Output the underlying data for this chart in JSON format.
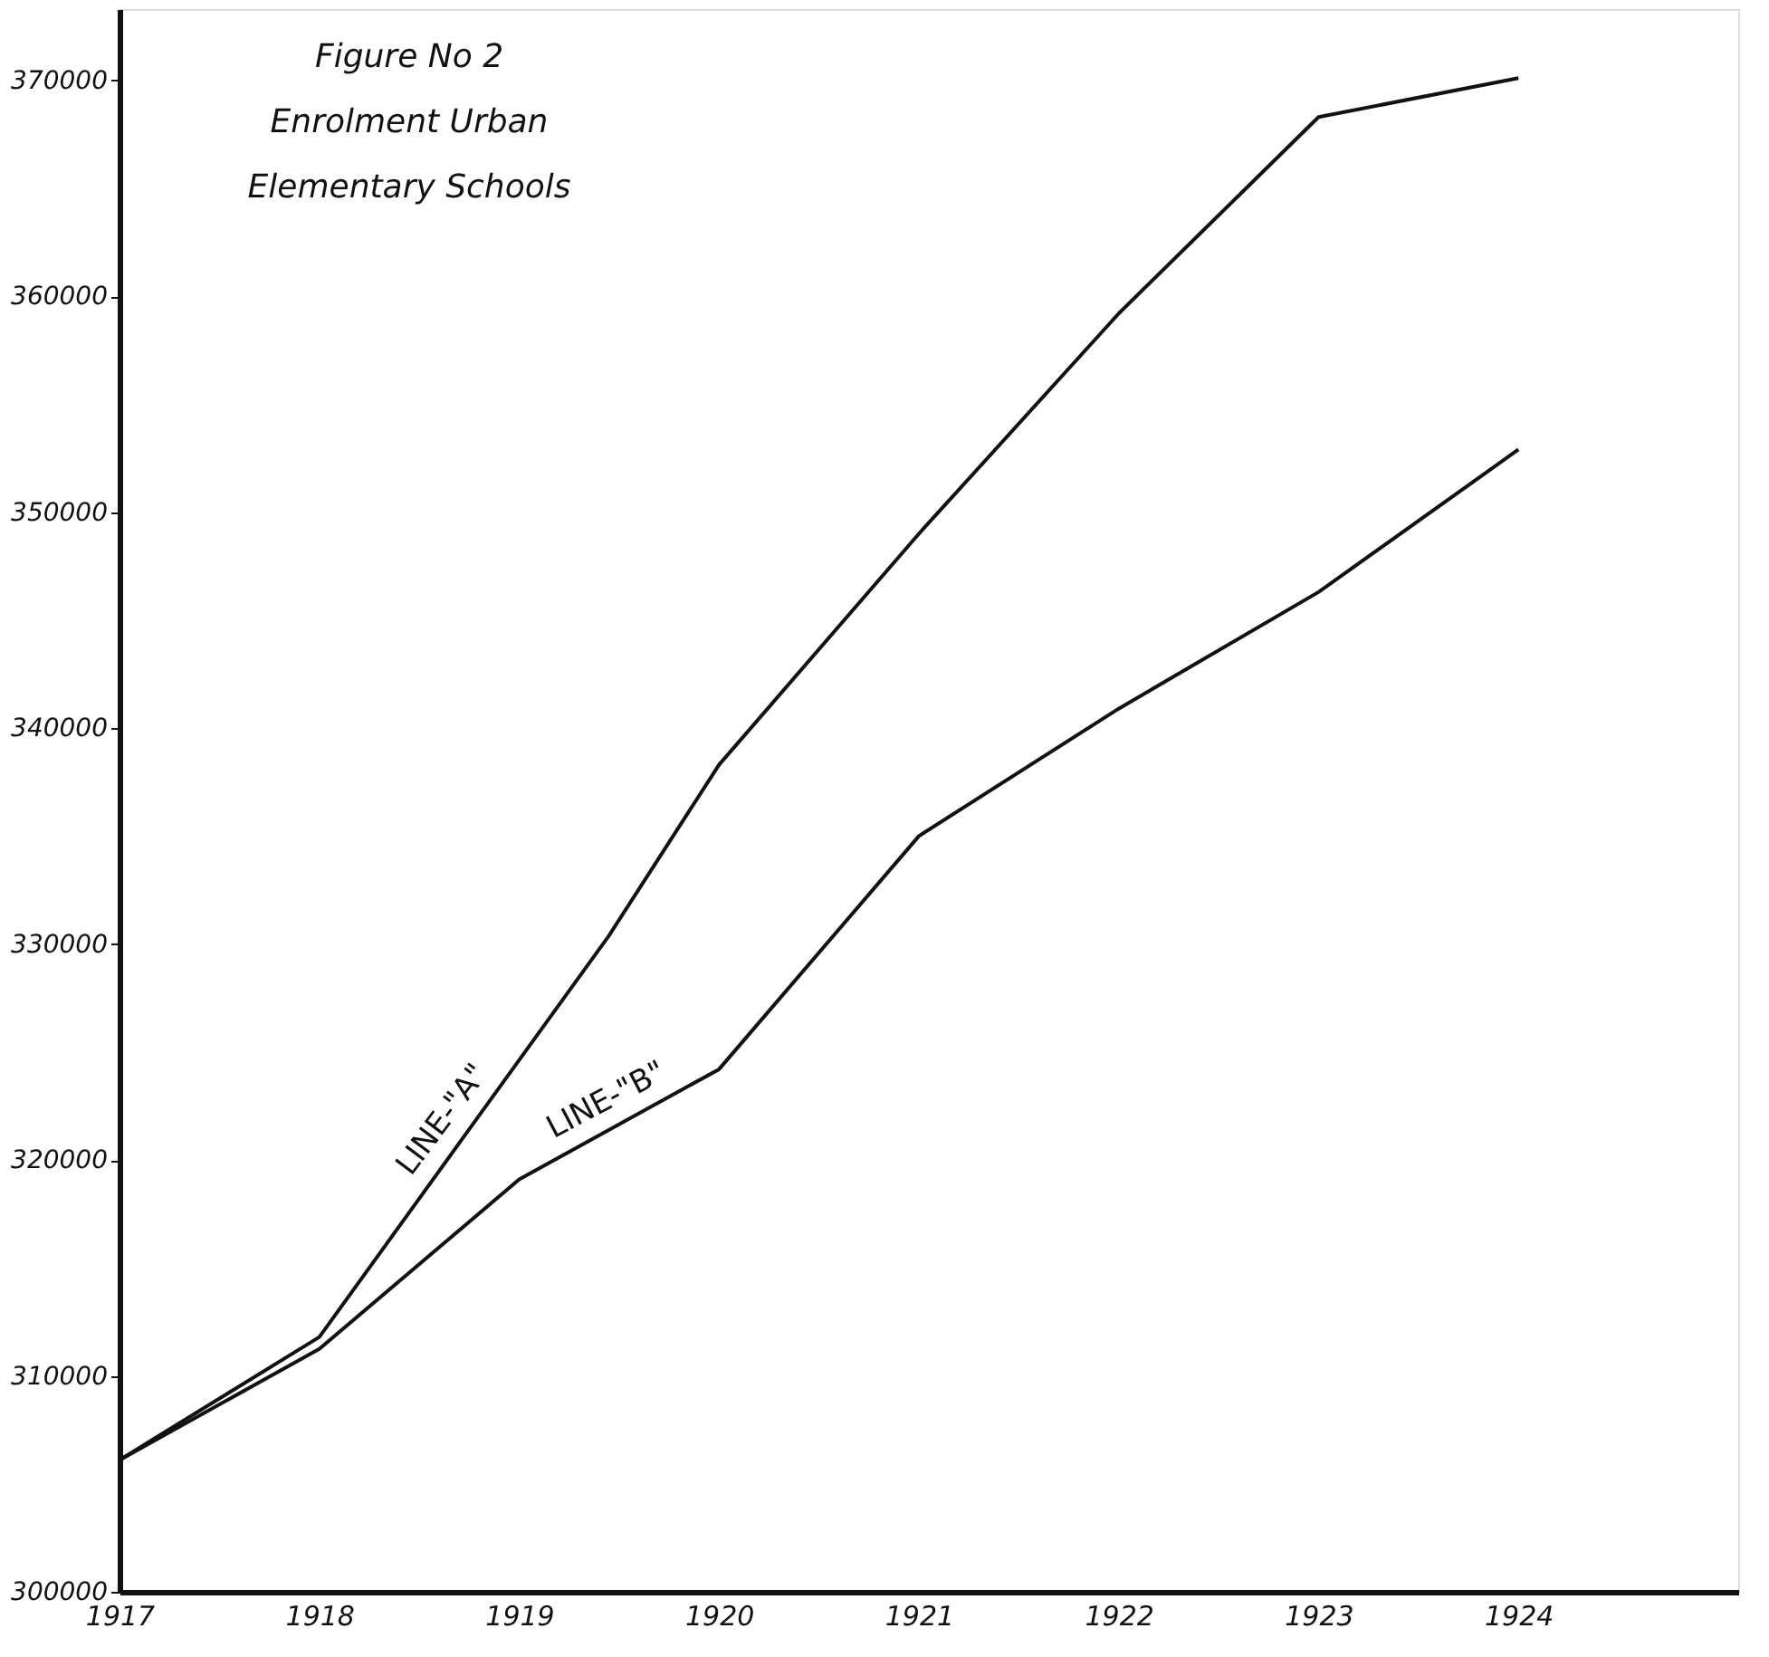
{
  "chart_data": {
    "type": "line",
    "title": "Figure No 2\nEnrolment Urban\nElementary Schools",
    "xlim": [
      1917,
      1925.1
    ],
    "xticks": [
      1917,
      1918,
      1919,
      1920,
      1921,
      1922,
      1923,
      1924
    ],
    "ylim": [
      300000,
      373300
    ],
    "yticks": [
      300000,
      310000,
      320000,
      330000,
      340000,
      350000,
      360000,
      370000
    ],
    "grid": false,
    "legend": false,
    "marker": "none",
    "line_style": "solid",
    "series": [
      {
        "name": "LINE-\"A\"",
        "color": "#111111",
        "x": [
          1917,
          1918,
          1919.45,
          1920,
          1921,
          1922,
          1923,
          1924
        ],
        "values": [
          306100,
          311800,
          330400,
          338300,
          349000,
          359200,
          368300,
          370100
        ]
      },
      {
        "name": "LINE-\"B\"",
        "color": "#111111",
        "x": [
          1917,
          1918,
          1919,
          1920,
          1921,
          1922,
          1923,
          1924
        ],
        "values": [
          306100,
          311250,
          319100,
          324200,
          335000,
          340900,
          346300,
          352900
        ]
      }
    ]
  }
}
